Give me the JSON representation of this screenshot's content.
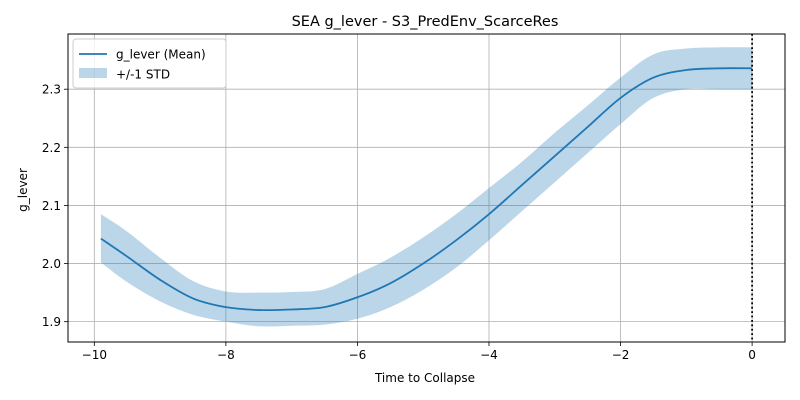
{
  "chart_data": {
    "type": "line",
    "title": "SEA g_lever - S3_PredEnv_ScarceRes",
    "xlabel": "Time to Collapse",
    "ylabel": "g_lever",
    "xlim": [
      -10.4,
      0.5
    ],
    "ylim": [
      1.865,
      2.395
    ],
    "xticks": [
      -10,
      -8,
      -6,
      -4,
      -2,
      0
    ],
    "xtick_labels": [
      "−10",
      "−8",
      "−6",
      "−4",
      "−2",
      "0"
    ],
    "yticks": [
      1.9,
      2.0,
      2.1,
      2.2,
      2.3
    ],
    "ytick_labels": [
      "1.9",
      "2.0",
      "2.1",
      "2.2",
      "2.3"
    ],
    "grid": true,
    "legend_position": "upper-left",
    "vline": {
      "x": 0,
      "style": "dotted",
      "color": "#000000"
    },
    "colors": {
      "mean_line": "#1f77b4",
      "std_band": "#1f77b4",
      "grid": "#b0b0b0"
    },
    "series": [
      {
        "name": "g_lever (Mean)",
        "kind": "line",
        "x": [
          -9.9,
          -9.5,
          -9.0,
          -8.5,
          -8.0,
          -7.5,
          -7.0,
          -6.5,
          -6.0,
          -5.5,
          -5.0,
          -4.5,
          -4.0,
          -3.5,
          -3.0,
          -2.5,
          -2.0,
          -1.5,
          -1.0,
          -0.5,
          0.0
        ],
        "values": [
          2.043,
          2.012,
          1.972,
          1.94,
          1.925,
          1.92,
          1.921,
          1.925,
          1.942,
          1.966,
          2.0,
          2.04,
          2.085,
          2.135,
          2.185,
          2.235,
          2.285,
          2.32,
          2.333,
          2.336,
          2.336
        ]
      },
      {
        "name": "+/-1 STD",
        "kind": "band",
        "x": [
          -9.9,
          -9.5,
          -9.0,
          -8.5,
          -8.0,
          -7.5,
          -7.0,
          -6.5,
          -6.0,
          -5.5,
          -5.0,
          -4.5,
          -4.0,
          -3.5,
          -3.0,
          -2.5,
          -2.0,
          -1.5,
          -1.0,
          -0.5,
          0.0
        ],
        "upper": [
          2.085,
          2.055,
          2.01,
          1.97,
          1.952,
          1.95,
          1.951,
          1.956,
          1.982,
          2.01,
          2.045,
          2.085,
          2.13,
          2.175,
          2.225,
          2.272,
          2.32,
          2.36,
          2.37,
          2.372,
          2.372
        ],
        "lower": [
          2.002,
          1.968,
          1.935,
          1.912,
          1.9,
          1.892,
          1.893,
          1.895,
          1.905,
          1.925,
          1.955,
          1.993,
          2.04,
          2.09,
          2.14,
          2.19,
          2.24,
          2.285,
          2.3,
          2.3,
          2.3
        ]
      }
    ]
  }
}
